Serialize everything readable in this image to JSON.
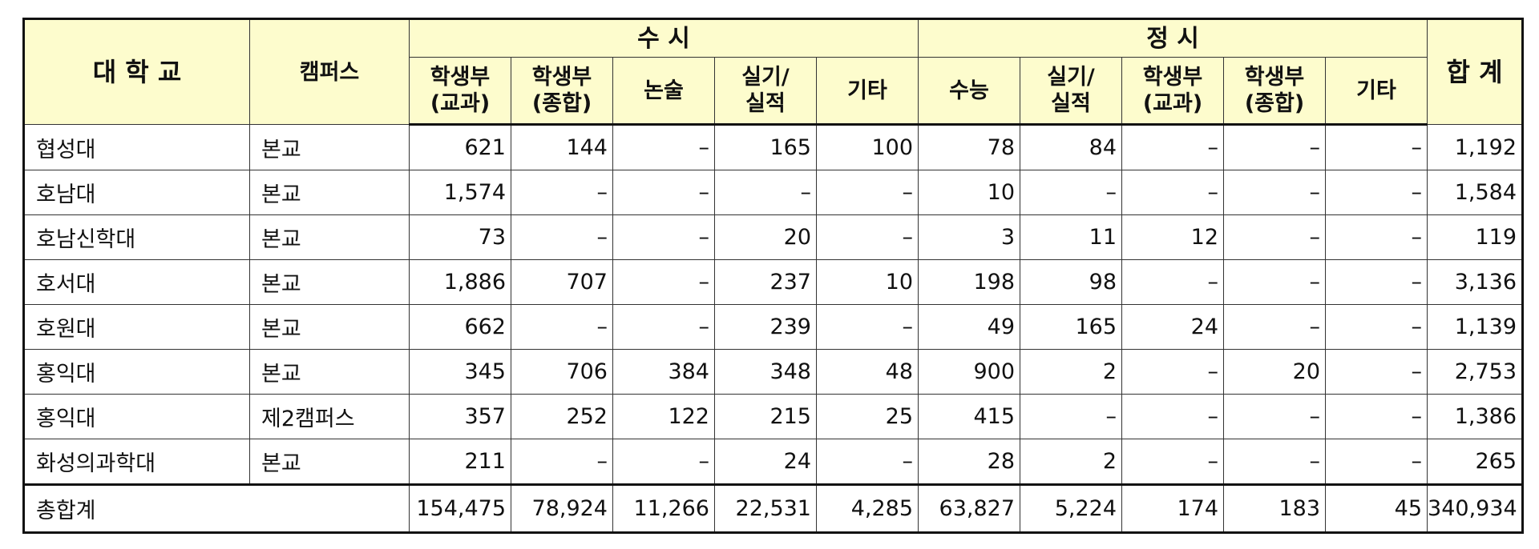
{
  "table": {
    "headers": {
      "university": "대 학 교",
      "campus": "캠퍼스",
      "susi": "수 시",
      "jeongsi": "정 시",
      "total": "합 계",
      "susi_cols": [
        [
          "학생부",
          "(교과)"
        ],
        [
          "학생부",
          "(종합)"
        ],
        [
          "논술"
        ],
        [
          "실기/",
          "실적"
        ],
        [
          "기타"
        ]
      ],
      "jeongsi_cols": [
        [
          "수능"
        ],
        [
          "실기/",
          "실적"
        ],
        [
          "학생부",
          "(교과)"
        ],
        [
          "학생부",
          "(종합)"
        ],
        [
          "기타"
        ]
      ]
    },
    "rows": [
      {
        "university": "협성대",
        "campus": "본교",
        "values": [
          "621",
          "144",
          "–",
          "165",
          "100",
          "78",
          "84",
          "–",
          "–",
          "–",
          "1,192"
        ]
      },
      {
        "university": "호남대",
        "campus": "본교",
        "values": [
          "1,574",
          "–",
          "–",
          "–",
          "–",
          "10",
          "–",
          "–",
          "–",
          "–",
          "1,584"
        ]
      },
      {
        "university": "호남신학대",
        "campus": "본교",
        "values": [
          "73",
          "–",
          "–",
          "20",
          "–",
          "3",
          "11",
          "12",
          "–",
          "–",
          "119"
        ]
      },
      {
        "university": "호서대",
        "campus": "본교",
        "values": [
          "1,886",
          "707",
          "–",
          "237",
          "10",
          "198",
          "98",
          "–",
          "–",
          "–",
          "3,136"
        ]
      },
      {
        "university": "호원대",
        "campus": "본교",
        "values": [
          "662",
          "–",
          "–",
          "239",
          "–",
          "49",
          "165",
          "24",
          "–",
          "–",
          "1,139"
        ]
      },
      {
        "university": "홍익대",
        "campus": "본교",
        "values": [
          "345",
          "706",
          "384",
          "348",
          "48",
          "900",
          "2",
          "–",
          "20",
          "–",
          "2,753"
        ]
      },
      {
        "university": "홍익대",
        "campus": "제2캠퍼스",
        "values": [
          "357",
          "252",
          "122",
          "215",
          "25",
          "415",
          "–",
          "–",
          "–",
          "–",
          "1,386"
        ]
      },
      {
        "university": "화성의과학대",
        "campus": "본교",
        "values": [
          "211",
          "–",
          "–",
          "24",
          "–",
          "28",
          "2",
          "–",
          "–",
          "–",
          "265"
        ]
      }
    ],
    "total_row": {
      "label": "총합계",
      "values": [
        "154,475",
        "78,924",
        "11,266",
        "22,531",
        "4,285",
        "63,827",
        "5,224",
        "174",
        "183",
        "45",
        "340,934"
      ]
    }
  },
  "colors": {
    "header_bg": "#fdfccd",
    "border": "#111111"
  }
}
